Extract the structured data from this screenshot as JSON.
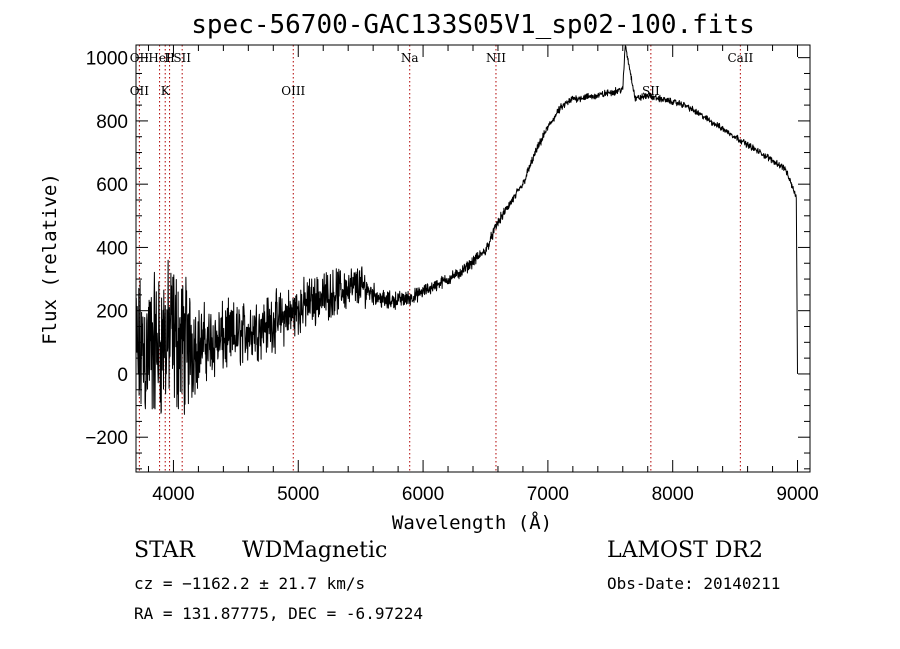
{
  "chart_data": {
    "type": "line",
    "title": "spec-56700-GAC133S05V1_sp02-100.fits",
    "xlabel": "Wavelength (Å)",
    "ylabel": "Flux (relative)",
    "xlim": [
      3700,
      9100
    ],
    "ylim": [
      -310,
      1040
    ],
    "xticks": [
      "4000",
      "5000",
      "6000",
      "7000",
      "8000",
      "9000"
    ],
    "yticks": [
      "−200",
      "0",
      "200",
      "400",
      "600",
      "800",
      "1000"
    ],
    "line_color": "#000000",
    "marker_color": "#b00000",
    "spectrum_anchors": {
      "x": [
        3700,
        3800,
        3900,
        4000,
        4100,
        4300,
        4500,
        4700,
        4900,
        5100,
        5300,
        5500,
        5700,
        5900,
        6100,
        6300,
        6500,
        6600,
        6800,
        6900,
        7000,
        7100,
        7200,
        7400,
        7600,
        7620,
        7700,
        7800,
        7900,
        8100,
        8300,
        8500,
        8700,
        8900,
        8990,
        9000
      ],
      "y": [
        50,
        80,
        100,
        120,
        90,
        100,
        120,
        150,
        180,
        230,
        260,
        280,
        230,
        240,
        280,
        320,
        390,
        480,
        600,
        700,
        780,
        840,
        870,
        880,
        900,
        1040,
        870,
        880,
        870,
        850,
        800,
        750,
        700,
        650,
        560,
        0
      ],
      "noise_amplitude": {
        "x": [
          3700,
          4100,
          4200,
          4600,
          5000,
          5500,
          5600,
          6000,
          6500,
          7000,
          8000,
          9000
        ],
        "amp": [
          300,
          280,
          150,
          120,
          100,
          80,
          40,
          25,
          20,
          15,
          12,
          12
        ]
      }
    },
    "spectral_lines": [
      {
        "wavelength": 3727,
        "labels": [
          "OII",
          "OII"
        ]
      },
      {
        "wavelength": 3889,
        "labels": [
          "HeI",
          ""
        ]
      },
      {
        "wavelength": 3934,
        "labels": [
          "",
          "K"
        ]
      },
      {
        "wavelength": 3969,
        "labels": [
          "H",
          ""
        ]
      },
      {
        "wavelength": 4070,
        "labels": [
          "SII",
          ""
        ]
      },
      {
        "wavelength": 4960,
        "labels": [
          "",
          "OIII"
        ]
      },
      {
        "wavelength": 5893,
        "labels": [
          "Na",
          ""
        ]
      },
      {
        "wavelength": 6584,
        "labels": [
          "NII",
          ""
        ]
      },
      {
        "wavelength": 7825,
        "labels": [
          "",
          "SII"
        ]
      },
      {
        "wavelength": 8542,
        "labels": [
          "CaII",
          ""
        ]
      }
    ]
  },
  "info": {
    "object_class": "STAR",
    "subclass": "WDMagnetic",
    "survey": "LAMOST DR2",
    "redshift": "cz = −1162.2 ± 21.7 km/s",
    "obs_date": "Obs-Date: 20140211",
    "coords": "RA = 131.87775, DEC =  -6.97224"
  }
}
